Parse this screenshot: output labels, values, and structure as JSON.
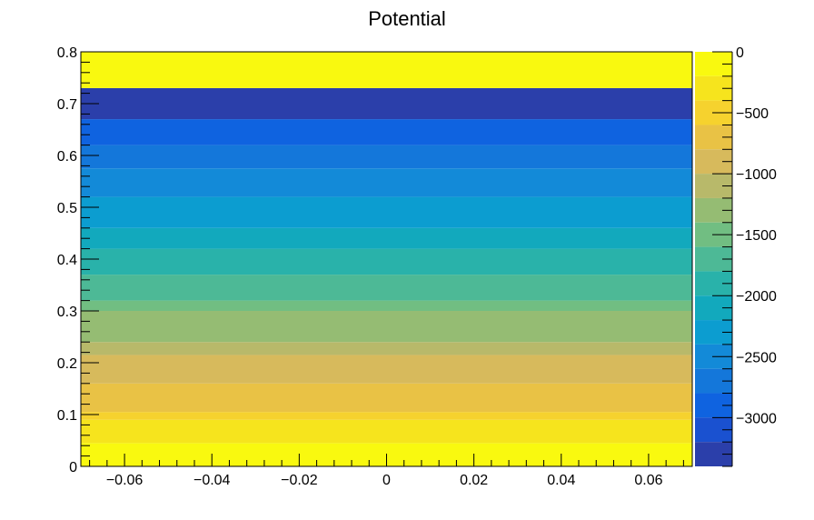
{
  "chart_data": {
    "type": "heatmap",
    "title": "Potential",
    "xlabel": "",
    "ylabel": "",
    "xlim": [
      -0.07,
      0.07
    ],
    "ylim": [
      0,
      0.8
    ],
    "zlim": [
      -3400,
      0
    ],
    "x_ticks": [
      -0.06,
      -0.04,
      -0.02,
      0,
      0.02,
      0.04,
      0.06
    ],
    "x_tick_labels": [
      "−0.06",
      "−0.04",
      "−0.02",
      "0",
      "0.02",
      "0.04",
      "0.06"
    ],
    "y_ticks": [
      0,
      0.1,
      0.2,
      0.3,
      0.4,
      0.5,
      0.6,
      0.7,
      0.8
    ],
    "y_tick_labels": [
      "0",
      "0.1",
      "0.2",
      "0.3",
      "0.4",
      "0.5",
      "0.6",
      "0.7",
      "0.8"
    ],
    "z_ticks": [
      0,
      -500,
      -1000,
      -1500,
      -2000,
      -2500,
      -3000
    ],
    "z_tick_labels": [
      "0",
      "−500",
      "−1000",
      "−1500",
      "−2000",
      "−2500",
      "−3000"
    ],
    "z_levels": [
      {
        "from": -200,
        "to": 0,
        "color": "#f9f90f"
      },
      {
        "from": -400,
        "to": -200,
        "color": "#f6e41d"
      },
      {
        "from": -600,
        "to": -400,
        "color": "#f6d22e"
      },
      {
        "from": -800,
        "to": -600,
        "color": "#e9c245"
      },
      {
        "from": -1000,
        "to": -800,
        "color": "#d7ba5c"
      },
      {
        "from": -1200,
        "to": -1000,
        "color": "#b8b96a"
      },
      {
        "from": -1400,
        "to": -1200,
        "color": "#95bc73"
      },
      {
        "from": -1600,
        "to": -1400,
        "color": "#71be82"
      },
      {
        "from": -1800,
        "to": -1600,
        "color": "#4db996"
      },
      {
        "from": -2000,
        "to": -1800,
        "color": "#29b2aa"
      },
      {
        "from": -2200,
        "to": -2000,
        "color": "#12a9bd"
      },
      {
        "from": -2400,
        "to": -2200,
        "color": "#0c9dd0"
      },
      {
        "from": -2600,
        "to": -2400,
        "color": "#138ad8"
      },
      {
        "from": -2800,
        "to": -2600,
        "color": "#1477da"
      },
      {
        "from": -3000,
        "to": -2800,
        "color": "#0f63e0"
      },
      {
        "from": -3200,
        "to": -3000,
        "color": "#1a51d0"
      },
      {
        "from": -3400,
        "to": -3200,
        "color": "#2b3faa"
      }
    ],
    "bands": [
      {
        "y0": 0.0,
        "y1": 0.045,
        "z": -100
      },
      {
        "y0": 0.045,
        "y1": 0.09,
        "z": -300
      },
      {
        "y0": 0.09,
        "y1": 0.105,
        "z": -500
      },
      {
        "y0": 0.105,
        "y1": 0.16,
        "z": -700
      },
      {
        "y0": 0.16,
        "y1": 0.215,
        "z": -900
      },
      {
        "y0": 0.215,
        "y1": 0.24,
        "z": -1100
      },
      {
        "y0": 0.24,
        "y1": 0.3,
        "z": -1300
      },
      {
        "y0": 0.3,
        "y1": 0.32,
        "z": -1500
      },
      {
        "y0": 0.32,
        "y1": 0.37,
        "z": -1700
      },
      {
        "y0": 0.37,
        "y1": 0.42,
        "z": -1900
      },
      {
        "y0": 0.42,
        "y1": 0.46,
        "z": -2100
      },
      {
        "y0": 0.46,
        "y1": 0.52,
        "z": -2300
      },
      {
        "y0": 0.52,
        "y1": 0.575,
        "z": -2500
      },
      {
        "y0": 0.575,
        "y1": 0.62,
        "z": -2700
      },
      {
        "y0": 0.62,
        "y1": 0.67,
        "z": -2900
      },
      {
        "y0": 0.67,
        "y1": 0.73,
        "z": -3300
      },
      {
        "y0": 0.73,
        "y1": 0.8,
        "z": -100
      }
    ]
  }
}
